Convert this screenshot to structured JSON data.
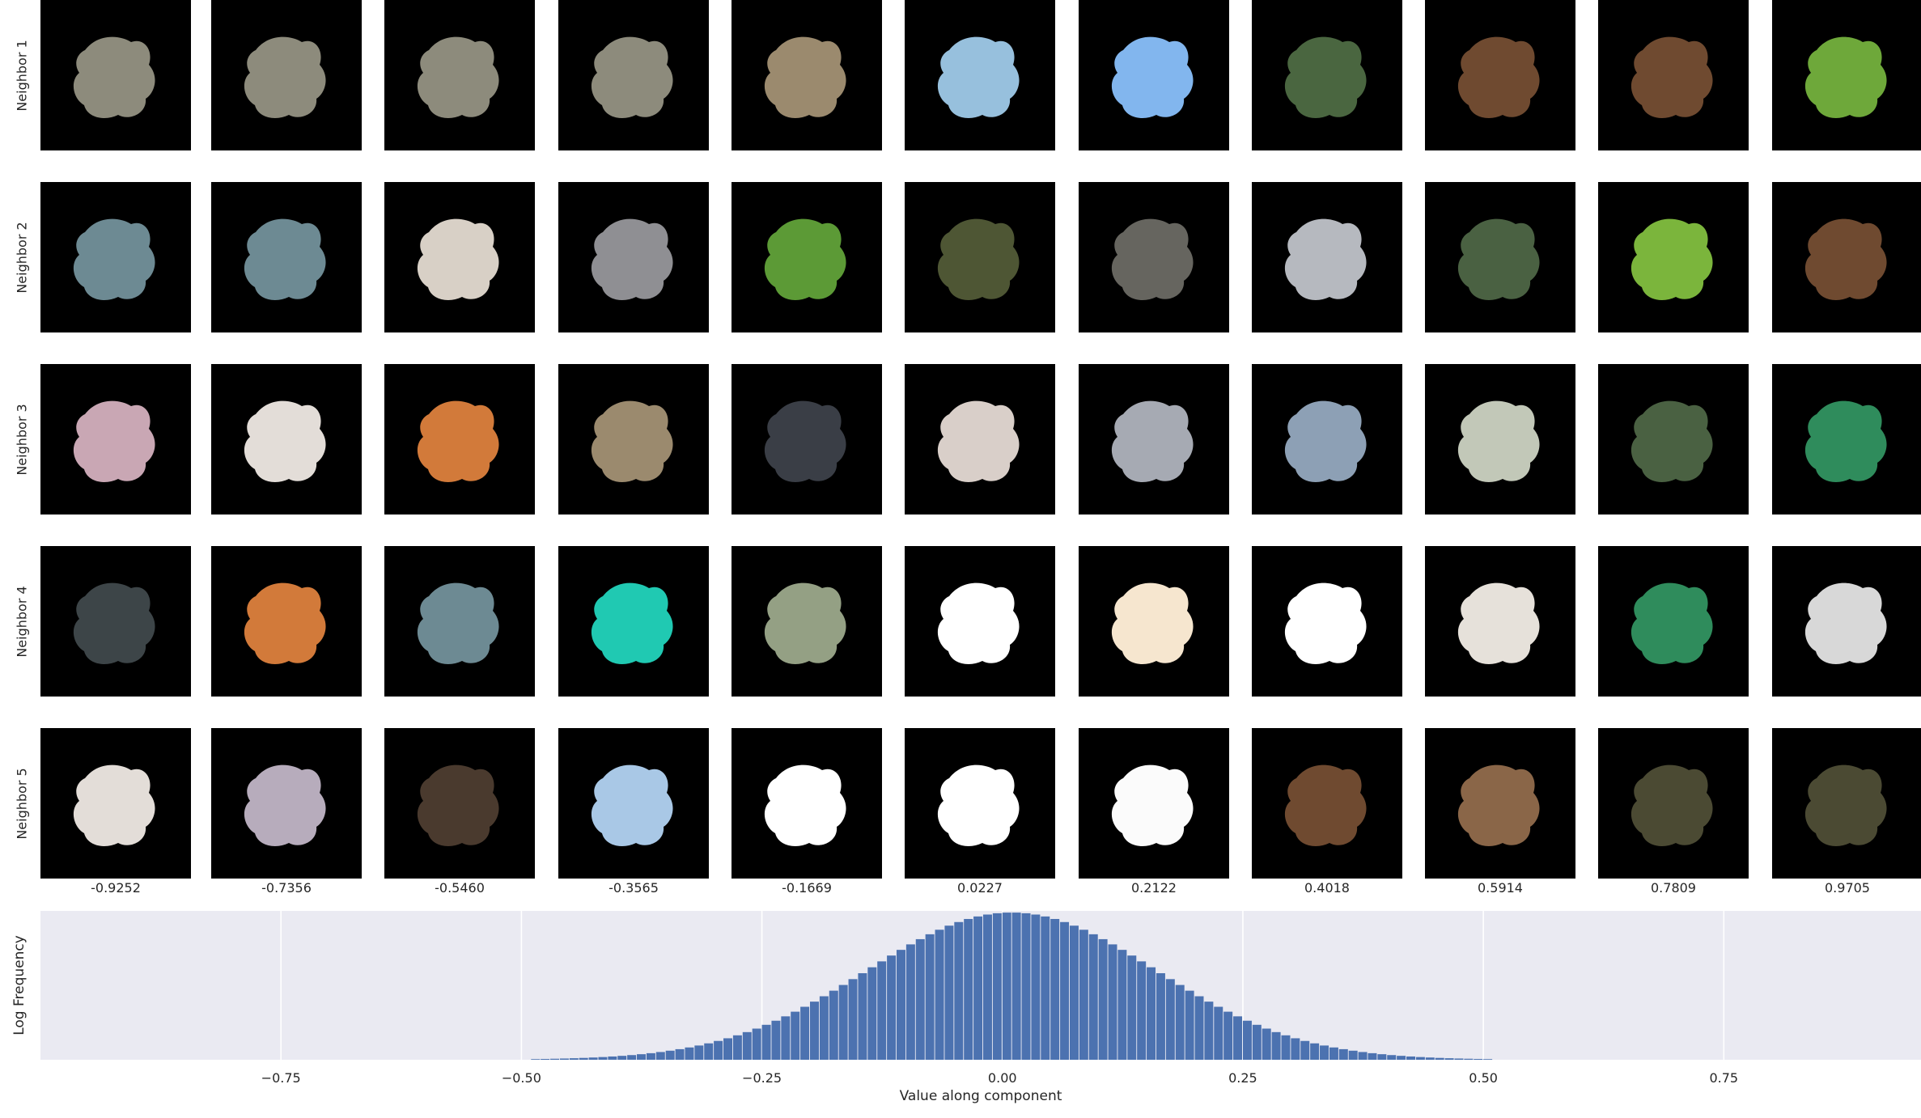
{
  "chart_data": {
    "type": "bar",
    "subtype": "histogram with image-grid of nearest neighbors",
    "grid": {
      "row_labels": [
        "Neighbor 1",
        "Neighbor 2",
        "Neighbor 3",
        "Neighbor 4",
        "Neighbor 5"
      ],
      "column_values": [
        "-0.9252",
        "-0.7356",
        "-0.5460",
        "-0.3565",
        "-0.1669",
        "0.0227",
        "0.2122",
        "0.4018",
        "0.5914",
        "0.7809",
        "0.9705"
      ],
      "tiles": [
        [
          "#8d8b7c",
          "#8d8b7c",
          "#8d8b7c",
          "#8d8b7c",
          "#9b8a6e",
          "#97c0dd",
          "#82b6ee",
          "#4a6640",
          "#6f4a30",
          "#6f4a30",
          "#6ea83a"
        ],
        [
          "#6d8a93",
          "#6d8a93",
          "#d8d0c6",
          "#8f8f93",
          "#5c9a36",
          "#4e5634",
          "#66655f",
          "#b6b9bf",
          "#4a6142",
          "#7bb53c",
          "#6f4a30"
        ],
        [
          "#c9a7b4",
          "#e3ddd8",
          "#d27a3a",
          "#9b8a6e",
          "#3a3e46",
          "#d9cfc9",
          "#a6aab3",
          "#8da0b5",
          "#c2c8b8",
          "#4a6142",
          "#2f8c5c"
        ],
        [
          "#3d4548",
          "#d27a3a",
          "#6d8a93",
          "#20c9b2",
          "#94a084",
          "#ffffff",
          "#f6e6cf",
          "#ffffff",
          "#e6e1da",
          "#2f8c5c",
          "#d8d8d8"
        ],
        [
          "#e3ddd8",
          "#b7acbc",
          "#4a3a2e",
          "#a9c8e6",
          "#ffffff",
          "#ffffff",
          "#fbfbfb",
          "#6f4a30",
          "#8a6648",
          "#4b4a33",
          "#4b4a33"
        ]
      ]
    },
    "histogram": {
      "xlabel": "Value along component",
      "ylabel": "Log Frequency",
      "xlim": [
        -0.95,
        0.95
      ],
      "xticks": [
        -0.75,
        -0.5,
        -0.25,
        0,
        0.25,
        0.5,
        0.75
      ],
      "xtick_labels": [
        "−0.75",
        "−0.50",
        "−0.25",
        "0.00",
        "0.25",
        "0.50",
        "0.75"
      ],
      "bin_range": [
        -0.56,
        0.56
      ],
      "bin_width": 0.01,
      "log_peak": 1.0,
      "shape": "approximately gaussian, mean 0.01, std 0.145",
      "bar_color": "#4c72b0",
      "background": "#eaeaf2"
    }
  }
}
